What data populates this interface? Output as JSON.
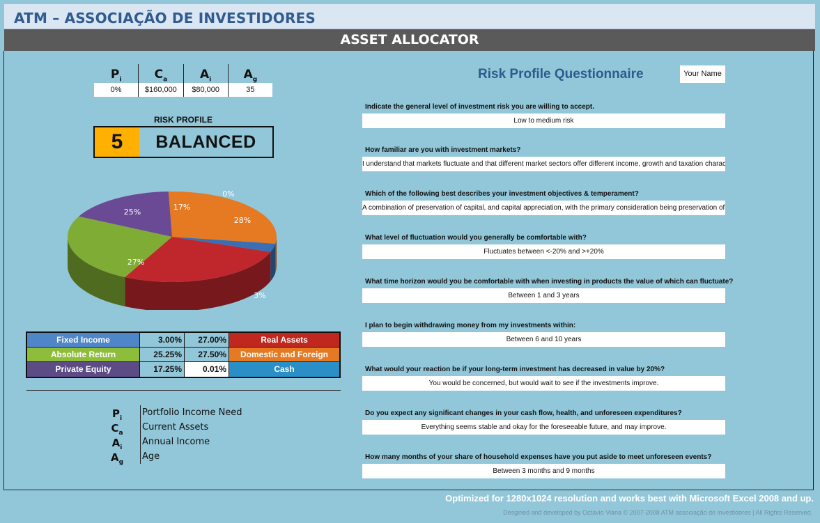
{
  "header": {
    "org_title": "ATM – ASSOCIAÇÃO DE INVESTIDORES",
    "app_title": "ASSET ALLOCATOR"
  },
  "stats": {
    "headers": [
      {
        "main": "P",
        "sub": "i"
      },
      {
        "main": "C",
        "sub": "a"
      },
      {
        "main": "A",
        "sub": "i"
      },
      {
        "main": "A",
        "sub": "g"
      }
    ],
    "values": [
      "0%",
      "$160,000",
      "$80,000",
      "35"
    ]
  },
  "risk_profile": {
    "label": "RISK PROFILE",
    "number": "5",
    "name": "BALANCED"
  },
  "chart_data": {
    "type": "pie",
    "slices": [
      {
        "label": "28%",
        "value": 28,
        "color": "#e67a22"
      },
      {
        "label": "3%",
        "value": 3,
        "color": "#3a6fb4"
      },
      {
        "label": "27%",
        "value": 27,
        "color": "#c0272d"
      },
      {
        "label": "25%",
        "value": 25,
        "color": "#7fac34"
      },
      {
        "label": "17%",
        "value": 17,
        "color": "#6a4a94"
      },
      {
        "label": "0%",
        "value": 0,
        "color": "#2a95c9"
      }
    ]
  },
  "allocation": {
    "rows": [
      {
        "left_label": "Fixed Income",
        "left_color": "#4f86c8",
        "left_value": "3.00%",
        "right_value": "27.00%",
        "right_label": "Real Assets",
        "right_color": "#c0271e"
      },
      {
        "left_label": "Absolute Return",
        "left_color": "#8ebd3c",
        "left_value": "25.25%",
        "right_value": "27.50%",
        "right_label": "Domestic and Foreign Equity",
        "right_color": "#e67a22"
      },
      {
        "left_label": "Private Equity",
        "left_color": "#5d4b86",
        "left_value": "17.25%",
        "right_value": "0.01%",
        "right_label": "Cash",
        "right_color": "#2a8fc7"
      }
    ]
  },
  "legend": [
    {
      "main": "P",
      "sub": "i",
      "desc": "Portfolio Income Need"
    },
    {
      "main": "C",
      "sub": "a",
      "desc": "Current Assets"
    },
    {
      "main": "A",
      "sub": "i",
      "desc": "Annual Income"
    },
    {
      "main": "A",
      "sub": "g",
      "desc": "Age"
    }
  ],
  "questionnaire": {
    "title": "Risk Profile Questionnaire",
    "name_field": "Your Name",
    "questions": [
      {
        "q": "Indicate the general level of investment risk you are willing to accept.",
        "a": "Low to medium risk"
      },
      {
        "q": "How familiar are you with investment markets?",
        "a": "I understand that markets fluctuate and that different market sectors offer different income, growth and taxation characteristics."
      },
      {
        "q": "Which of the following best describes your investment objectives & temperament?",
        "a": "A combination of preservation of capital, and capital appreciation, with the primary consideration being preservation of capital."
      },
      {
        "q": "What level of fluctuation would you generally be comfortable with?",
        "a": "Fluctuates between <-20% and >+20%"
      },
      {
        "q": "What time horizon would you be comfortable with when investing in products the value of which can fluctuate?",
        "a": "Between 1 and 3 years"
      },
      {
        "q": "I plan to begin withdrawing money from my investments within:",
        "a": "Between 6 and 10 years"
      },
      {
        "q": "What would your reaction be if your long-term investment has decreased in value by 20%?",
        "a": "You would be concerned, but would wait to see if the investments improve."
      },
      {
        "q": "Do you expect any significant changes in your cash flow, health, and unforeseen expenditures?",
        "a": "Everything seems stable and okay for the foreseeable future, and may improve."
      },
      {
        "q": "How many months of your share of household expenses have you put aside to meet unforeseen events?",
        "a": "Between 3 months and 9 months"
      }
    ]
  },
  "footer": {
    "optimized": "Optimized for 1280x1024 resolution and works best with Microsoft Excel 2008 and up.",
    "credits": "Desgined and developed by Octávio Viana © 2007-2008 ATM associação de investidores | All Rights Reserved."
  }
}
